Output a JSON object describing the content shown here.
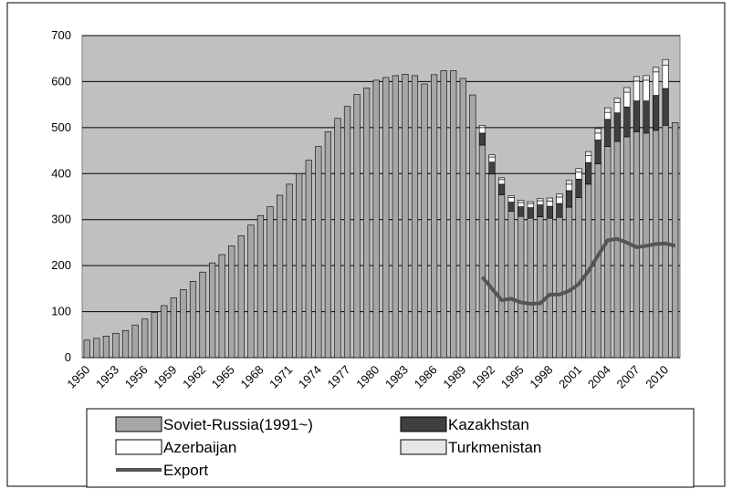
{
  "chart_data": {
    "type": "bar",
    "stacked": true,
    "categories": [
      "1950",
      null,
      null,
      "1953",
      null,
      null,
      "1956",
      null,
      null,
      "1959",
      null,
      null,
      "1962",
      null,
      null,
      "1965",
      null,
      null,
      "1968",
      null,
      null,
      "1971",
      null,
      null,
      "1974",
      null,
      null,
      "1977",
      null,
      null,
      "1980",
      null,
      null,
      "1983",
      null,
      null,
      "1986",
      null,
      null,
      "1989",
      null,
      null,
      "1992",
      null,
      null,
      "1995",
      null,
      null,
      "1998",
      null,
      null,
      "2001",
      null,
      null,
      "2004",
      null,
      null,
      "2007",
      null,
      null,
      "2010",
      null
    ],
    "series": [
      {
        "name": "Soviet-Russia(1991~)",
        "color": "#a6a6a6",
        "values": [
          38,
          42,
          47,
          53,
          59,
          71,
          84,
          98,
          113,
          130,
          148,
          166,
          186,
          206,
          224,
          243,
          265,
          288,
          309,
          328,
          353,
          377,
          400,
          429,
          459,
          491,
          520,
          546,
          572,
          586,
          603,
          609,
          613,
          616,
          613,
          595,
          615,
          624,
          624,
          607,
          571,
          462,
          399,
          354,
          318,
          307,
          303,
          306,
          303,
          305,
          327,
          348,
          377,
          421,
          459,
          470,
          480,
          491,
          488,
          494,
          505,
          511
        ]
      },
      {
        "name": "Kazakhstan",
        "color": "#404040",
        "values": [
          null,
          null,
          null,
          null,
          null,
          null,
          null,
          null,
          null,
          null,
          null,
          null,
          null,
          null,
          null,
          null,
          null,
          null,
          null,
          null,
          null,
          null,
          null,
          null,
          null,
          null,
          null,
          null,
          null,
          null,
          null,
          null,
          null,
          null,
          null,
          null,
          null,
          null,
          null,
          null,
          null,
          26,
          26,
          23,
          20,
          21,
          23,
          26,
          26,
          30,
          36,
          40,
          47,
          52,
          59,
          62,
          65,
          67,
          70,
          76,
          80,
          null
        ]
      },
      {
        "name": "Azerbaijan",
        "color": "#ffffff",
        "values": [
          null,
          null,
          null,
          null,
          null,
          null,
          null,
          null,
          null,
          null,
          null,
          null,
          null,
          null,
          null,
          null,
          null,
          null,
          null,
          null,
          null,
          null,
          null,
          null,
          null,
          null,
          null,
          null,
          null,
          null,
          null,
          null,
          null,
          null,
          null,
          null,
          null,
          null,
          null,
          null,
          null,
          12,
          11,
          10,
          10,
          9,
          9,
          9,
          11,
          14,
          14,
          15,
          15,
          15,
          15,
          22,
          32,
          43,
          45,
          51,
          51,
          null
        ]
      },
      {
        "name": "Turkmenistan",
        "color": "#e6e6e6",
        "values": [
          null,
          null,
          null,
          null,
          null,
          null,
          null,
          null,
          null,
          null,
          null,
          null,
          null,
          null,
          null,
          null,
          null,
          null,
          null,
          null,
          null,
          null,
          null,
          null,
          null,
          null,
          null,
          null,
          null,
          null,
          null,
          null,
          null,
          null,
          null,
          null,
          null,
          null,
          null,
          null,
          null,
          5,
          5,
          4,
          4,
          5,
          4,
          5,
          7,
          7,
          8,
          8,
          9,
          10,
          10,
          10,
          10,
          10,
          10,
          10,
          12,
          null
        ]
      },
      {
        "name": "Export",
        "type": "line",
        "color": "#555555",
        "values": [
          null,
          null,
          null,
          null,
          null,
          null,
          null,
          null,
          null,
          null,
          null,
          null,
          null,
          null,
          null,
          null,
          null,
          null,
          null,
          null,
          null,
          null,
          null,
          null,
          null,
          null,
          null,
          null,
          null,
          null,
          null,
          null,
          null,
          null,
          null,
          null,
          null,
          null,
          null,
          null,
          null,
          175,
          150,
          125,
          128,
          120,
          117,
          118,
          137,
          137,
          145,
          160,
          188,
          222,
          255,
          258,
          250,
          240,
          243,
          247,
          248,
          243
        ]
      }
    ],
    "ylim": [
      0,
      700
    ],
    "yticks": [
      0,
      100,
      200,
      300,
      400,
      500,
      600,
      700
    ],
    "grid": true
  }
}
